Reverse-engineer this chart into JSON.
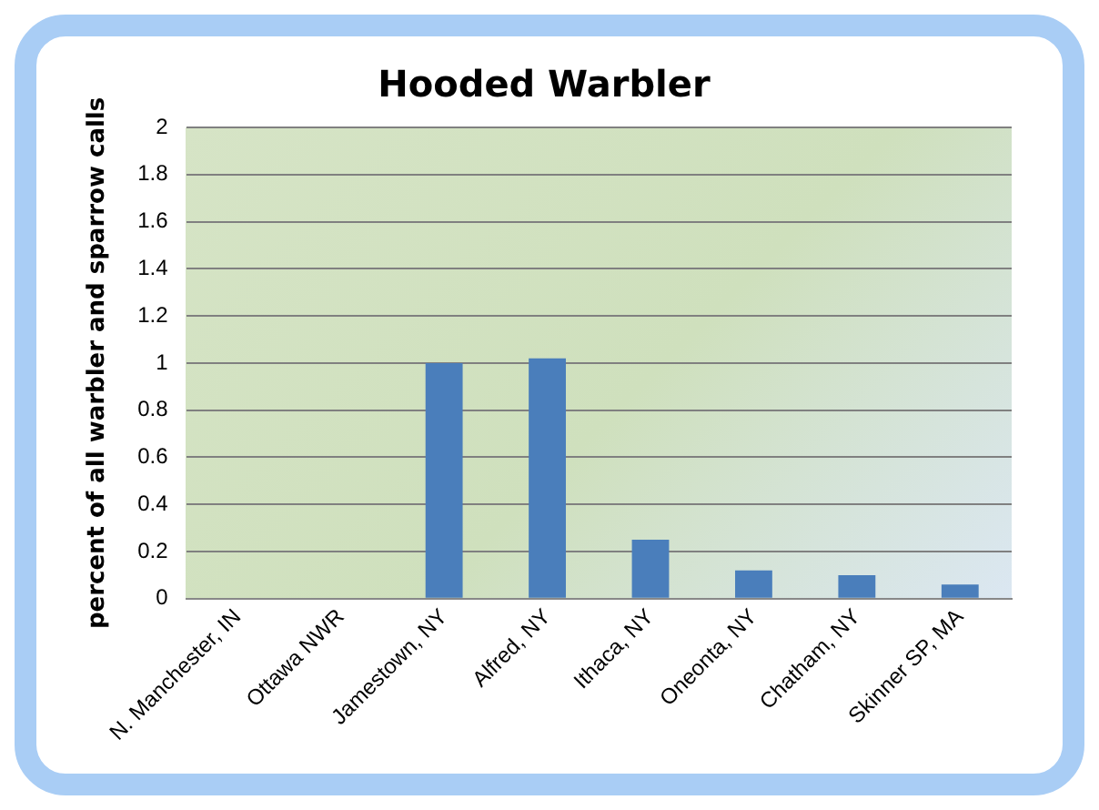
{
  "chart_data": {
    "type": "bar",
    "title": "Hooded Warbler",
    "ylabel": "percent of all warbler and sparrow calls",
    "categories": [
      "N. Manchester, IN",
      "Ottawa NWR",
      "Jamestown, NY",
      "Alfred, NY",
      "Ithaca, NY",
      "Oneonta, NY",
      "Chatham, NY",
      "Skinner SP, MA"
    ],
    "values": [
      0,
      0,
      1.0,
      1.02,
      0.25,
      0.12,
      0.1,
      0.06
    ],
    "color": "#4a7ebb",
    "ylim": [
      0,
      2
    ],
    "yticks": [
      0,
      0.2,
      0.4,
      0.6,
      0.8,
      1,
      1.2,
      1.4,
      1.6,
      1.8,
      2
    ],
    "grid": "y",
    "legend": false
  }
}
